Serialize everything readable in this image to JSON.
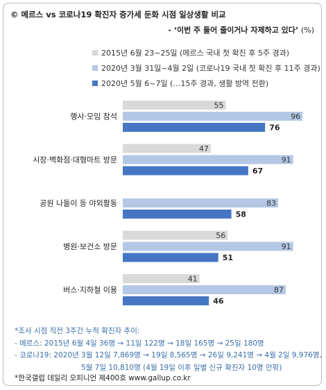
{
  "header": {
    "title": "© 메르스 vs 코로나19 확진자 증가세 둔화 시점 일상생활 비교",
    "subtitle": "- ‘이번 주 들어 줄이거나 자제하고 있다’",
    "unit": "(%)"
  },
  "colors": {
    "series1": "#d9d9d9",
    "series2": "#b4c8e6",
    "series3": "#4676c3",
    "notes": "#3a6ea8"
  },
  "chart_data": {
    "type": "bar",
    "orientation": "horizontal",
    "categories": [
      "행사·모임 참석",
      "시장·백화점·대형마트 방문",
      "공원 나들이 등 야외활동",
      "병원·보건소 방문",
      "버스·지하철 이용"
    ],
    "series": [
      {
        "name": "2015년 6월 23~25일 (메르스 국내 첫 확진 후 5주 경과)",
        "values": [
          55,
          47,
          null,
          56,
          41
        ]
      },
      {
        "name": "2020년 3월 31일~4월 2일 (코로나19 국내 첫 확진 후 11주 경과)",
        "values": [
          96,
          91,
          83,
          91,
          87
        ]
      },
      {
        "name": "2020년 5월 6~7일 (…15주 경과, 생활 방역 전환)",
        "values": [
          76,
          67,
          58,
          51,
          46
        ]
      }
    ],
    "xlim": [
      0,
      100
    ],
    "legend_position": "top"
  },
  "notes": {
    "line1": "*조사 시점 직전 3주간 누적 확진자 추이:",
    "line2": "- 메르스: 2015년 6월 4일 36명 → 11일 122명 → 18일 165명 → 25일 180명",
    "line3": "- 코로나19: 2020년 3월 12일 7,869명 → 19일 8,565명 → 26일 9,241명 → 4월 2일 9,976명,",
    "line4": "5월 7일 10,810명 (4월 19일 이후 일별 신규 확진자 10명 안팎)"
  },
  "source": "*한국갤럽 데일리 오피니언 제400호 www.gallup.co.kr"
}
